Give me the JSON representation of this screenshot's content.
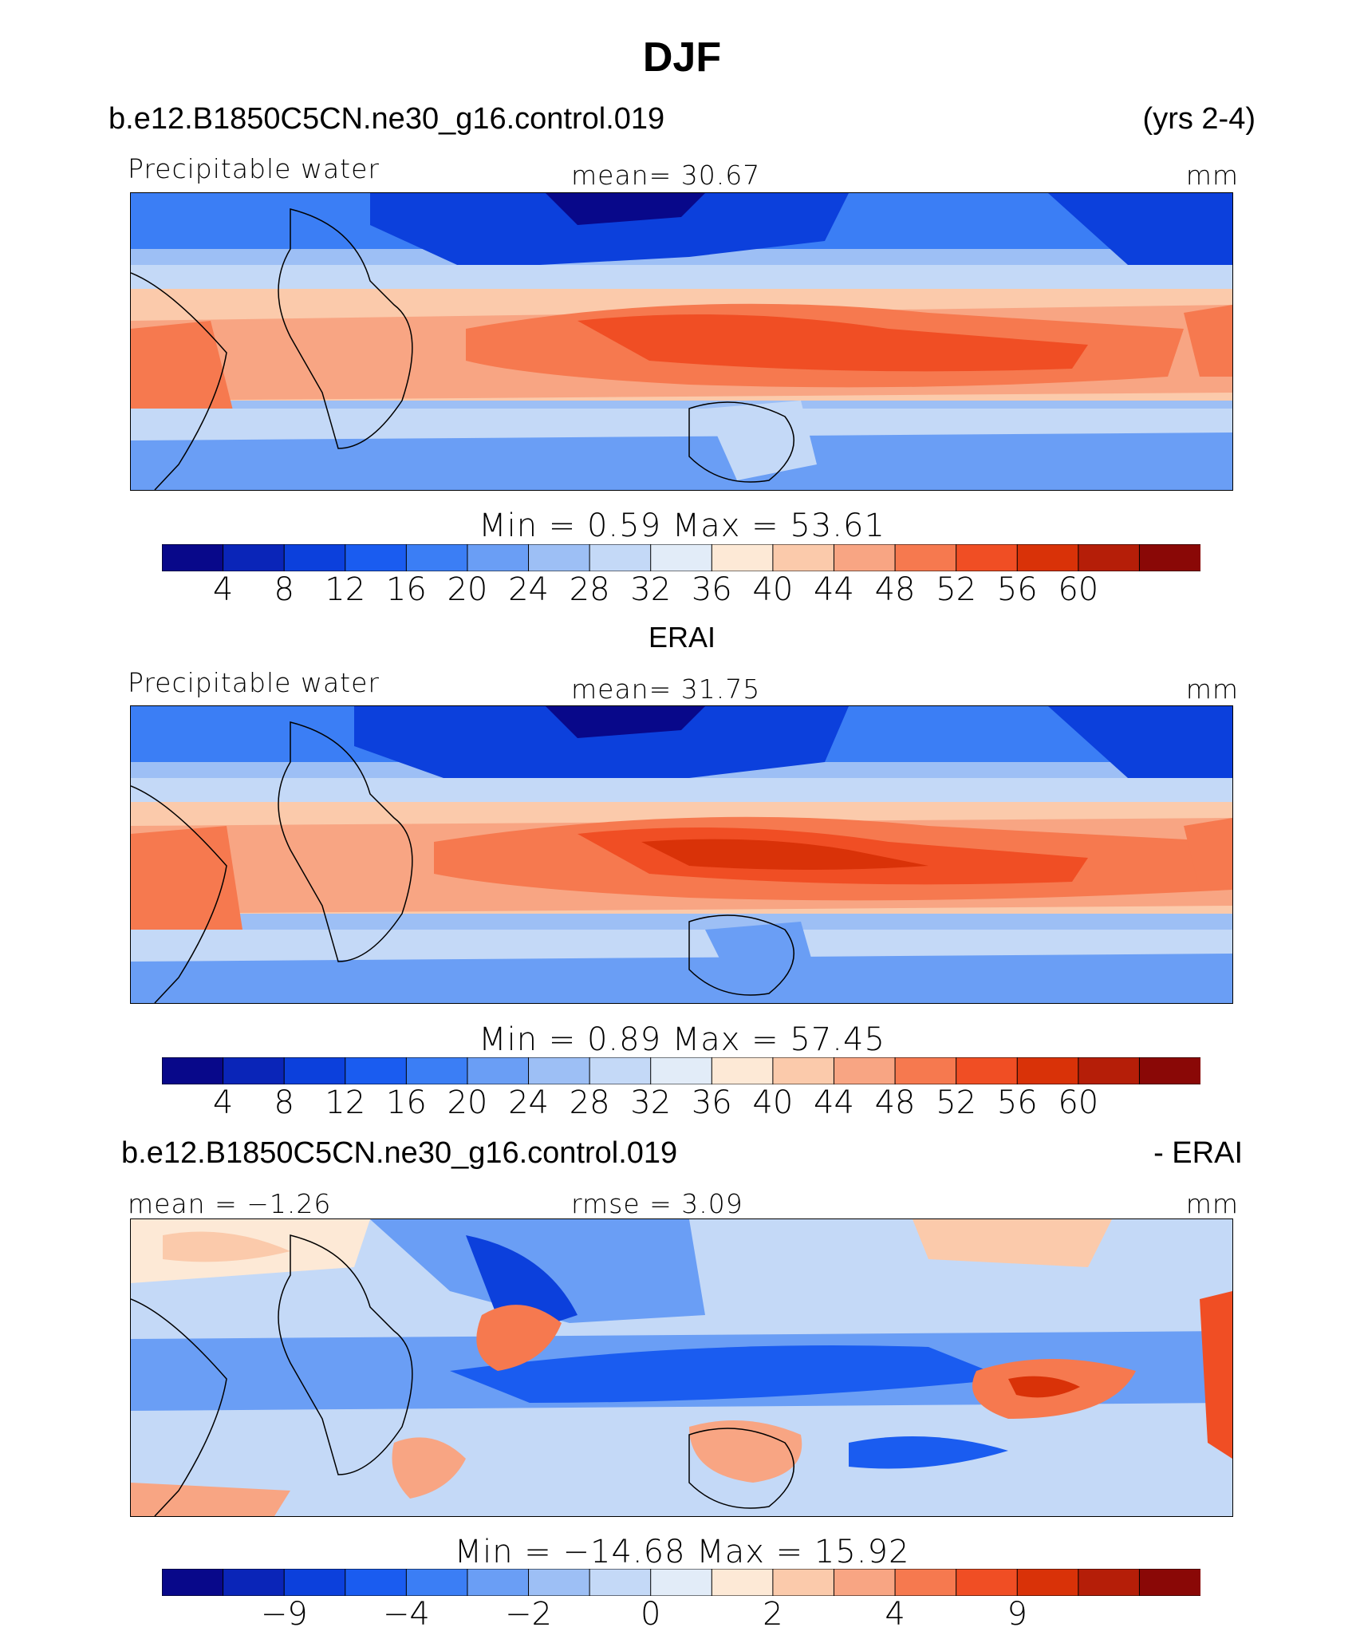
{
  "title": "DJF",
  "colors": [
    "#08088a",
    "#0a25b8",
    "#0c40dc",
    "#1a5cf0",
    "#3b7ef5",
    "#6a9ef5",
    "#9dbff5",
    "#c4d9f7",
    "#e2ecf8",
    "#fde9d6",
    "#fbcaab",
    "#f8a583",
    "#f6794f",
    "#f04e24",
    "#d93208",
    "#b51e08",
    "#8a0806"
  ],
  "top": {
    "case": "b.e12.B1850C5CN.ne30_g16.control.019",
    "years": "(yrs 2-4)",
    "var": "Precipitable water",
    "mean": "mean=   30.67",
    "units": "mm",
    "minmax": "Min  =      0.59  Max  =     53.61",
    "ticks": [
      "4",
      "8",
      "12",
      "16",
      "20",
      "24",
      "28",
      "32",
      "36",
      "40",
      "44",
      "48",
      "52",
      "56",
      "60"
    ]
  },
  "middle": {
    "case": "ERAI",
    "var": "Precipitable water",
    "mean": "mean=   31.75",
    "units": "mm",
    "minmax": "Min  =     0.89  Max  =     57.45",
    "ticks": [
      "4",
      "8",
      "12",
      "16",
      "20",
      "24",
      "28",
      "32",
      "36",
      "40",
      "44",
      "48",
      "52",
      "56",
      "60"
    ]
  },
  "bottom": {
    "case": "b.e12.B1850C5CN.ne30_g16.control.019",
    "suffix": "- ERAI",
    "mean": "mean  =   −1.26",
    "rmse": "rmse  =     3.09",
    "units": "mm",
    "minmax": "Min  =  −14.68  Max  =    15.92",
    "ticks": [
      "−9",
      "−4",
      "−2",
      "0",
      "2",
      "4",
      "9"
    ]
  }
}
